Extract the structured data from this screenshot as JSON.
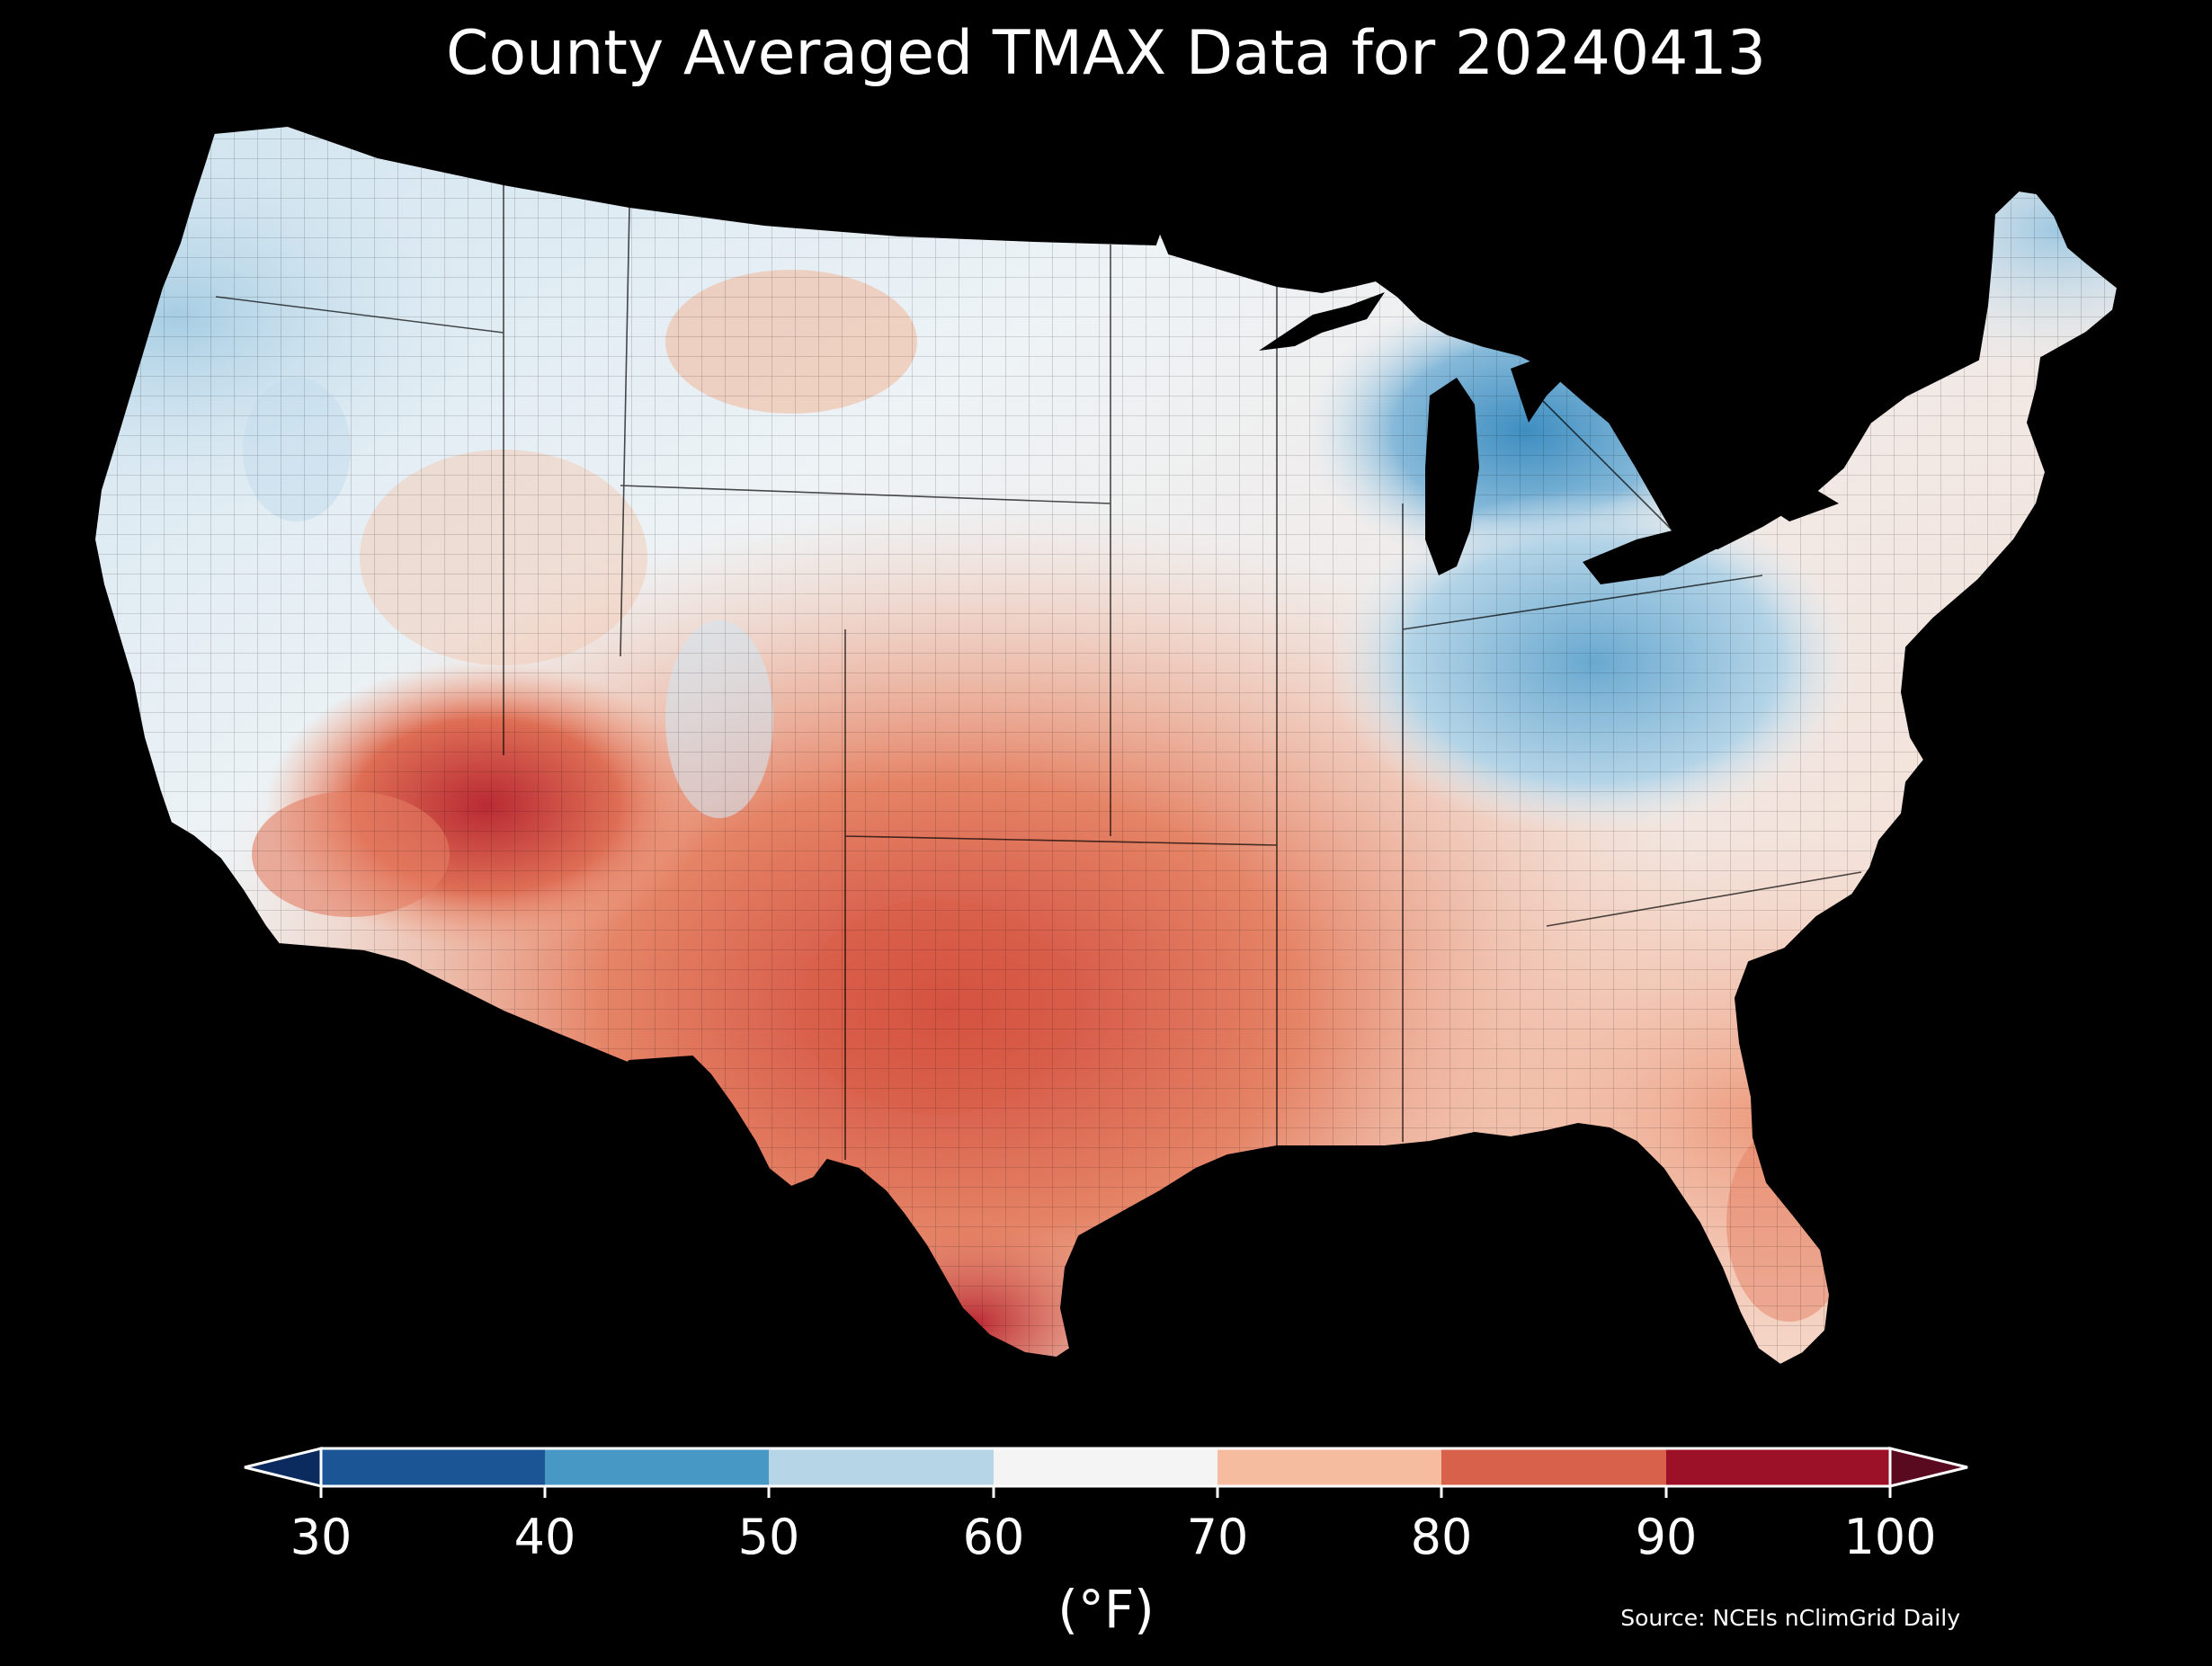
{
  "title": "County Averaged TMAX Data for 20240413",
  "colorbar": {
    "units_label": "(°F)",
    "ticks": [
      "30",
      "40",
      "50",
      "60",
      "70",
      "80",
      "90",
      "100"
    ],
    "under_color": "#0b2b5e",
    "over_color": "#5a0a1f",
    "bins": [
      {
        "from": 30,
        "to": 40,
        "color": "#1c5596"
      },
      {
        "from": 40,
        "to": 50,
        "color": "#4798c4"
      },
      {
        "from": 50,
        "to": 60,
        "color": "#b6d6e8"
      },
      {
        "from": 60,
        "to": 70,
        "color": "#f4f4f4"
      },
      {
        "from": 70,
        "to": 80,
        "color": "#f6bca0"
      },
      {
        "from": 80,
        "to": 90,
        "color": "#d8614b"
      },
      {
        "from": 90,
        "to": 100,
        "color": "#9c1127"
      }
    ]
  },
  "source": "Source: NCEIs nClimGrid Daily",
  "map": {
    "region": "contiguous-united-states",
    "background_color": "#000000",
    "county_border_color": "#000000"
  }
}
